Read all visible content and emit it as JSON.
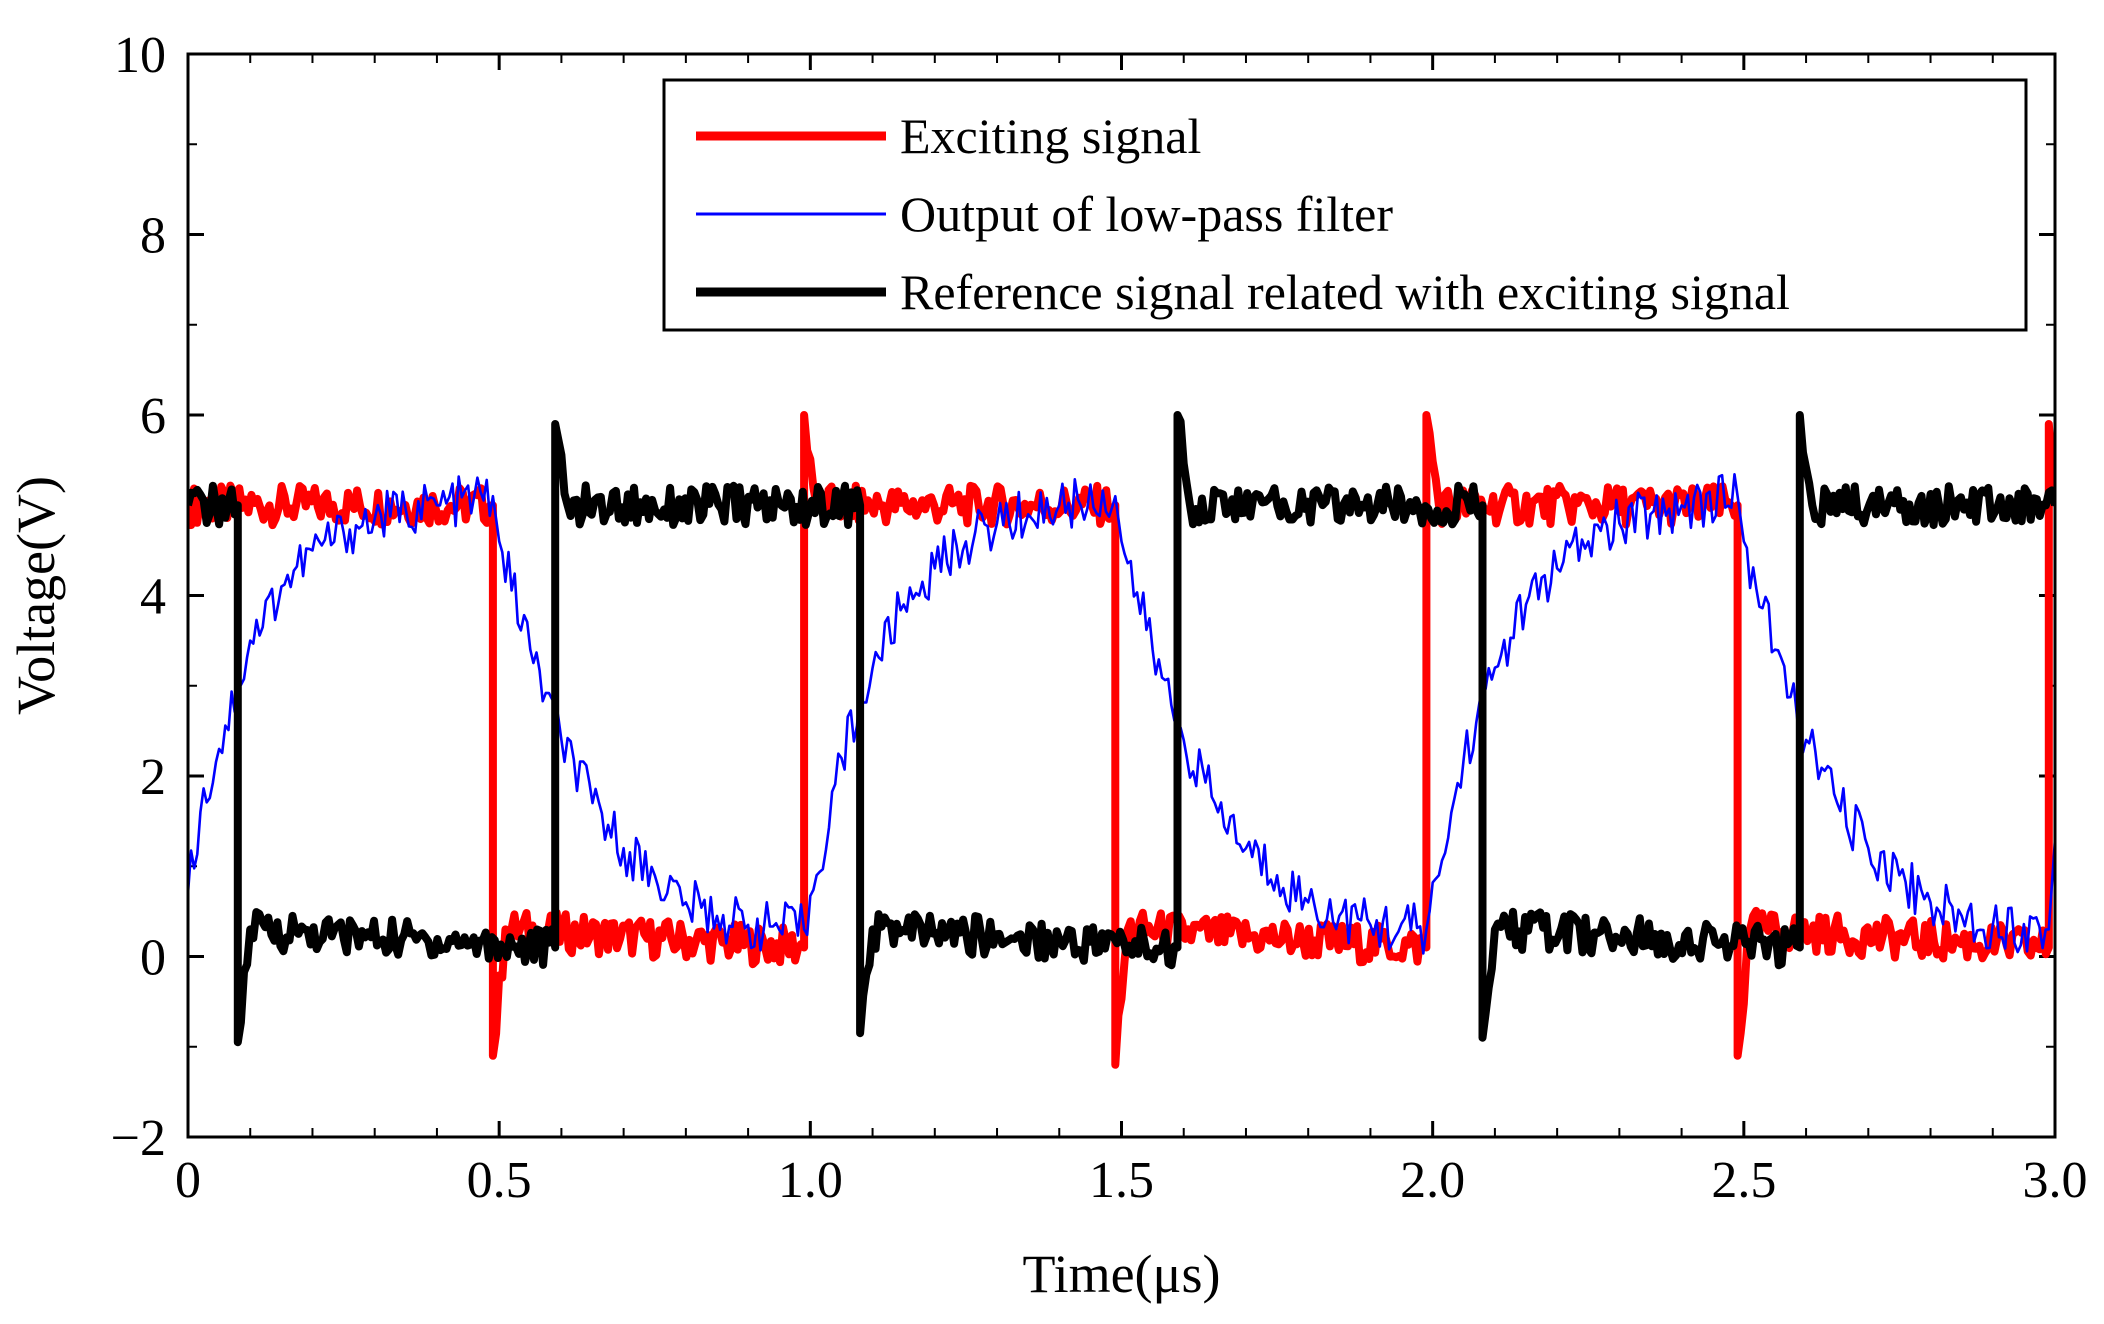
{
  "chart_data": {
    "type": "line",
    "title": "",
    "xlabel": "Time(μs)",
    "ylabel": "Voltage(V)",
    "xlim": [
      0,
      3.0
    ],
    "ylim": [
      -2,
      10
    ],
    "x_ticks": [
      0,
      0.5,
      1.0,
      1.5,
      2.0,
      2.5,
      3.0
    ],
    "x_tick_labels": [
      "0",
      "0.5",
      "1.0",
      "1.5",
      "2.0",
      "2.5",
      "3.0"
    ],
    "y_ticks": [
      -2,
      0,
      2,
      4,
      6,
      8,
      10
    ],
    "y_tick_labels": [
      "−2",
      "0",
      "2",
      "4",
      "6",
      "8",
      "10"
    ],
    "grid": false,
    "legend_position": "top-right",
    "series": [
      {
        "name": "Exciting signal",
        "color": "#ff0000",
        "line_style": "thick",
        "points": [
          [
            0.0,
            5.0
          ],
          [
            0.49,
            5.0
          ],
          [
            0.49,
            -1.1
          ],
          [
            0.51,
            0.3
          ],
          [
            0.99,
            0.1
          ],
          [
            0.99,
            6.0
          ],
          [
            1.01,
            5.0
          ],
          [
            1.49,
            5.0
          ],
          [
            1.49,
            -1.2
          ],
          [
            1.51,
            0.3
          ],
          [
            1.99,
            0.1
          ],
          [
            1.99,
            6.0
          ],
          [
            2.01,
            5.0
          ],
          [
            2.49,
            5.0
          ],
          [
            2.49,
            -1.1
          ],
          [
            2.51,
            0.3
          ],
          [
            2.99,
            0.1
          ],
          [
            2.99,
            5.9
          ],
          [
            3.0,
            5.0
          ]
        ]
      },
      {
        "name": "Output of low-pass filter",
        "color": "#0000ff",
        "line_style": "thin",
        "points": [
          [
            0.0,
            0.7
          ],
          [
            0.02,
            1.6
          ],
          [
            0.05,
            2.3
          ],
          [
            0.08,
            3.0
          ],
          [
            0.1,
            3.5
          ],
          [
            0.15,
            4.1
          ],
          [
            0.2,
            4.5
          ],
          [
            0.25,
            4.7
          ],
          [
            0.3,
            4.85
          ],
          [
            0.35,
            4.95
          ],
          [
            0.4,
            5.0
          ],
          [
            0.49,
            5.1
          ],
          [
            0.5,
            4.6
          ],
          [
            0.55,
            3.4
          ],
          [
            0.6,
            2.4
          ],
          [
            0.65,
            1.7
          ],
          [
            0.7,
            1.2
          ],
          [
            0.75,
            0.9
          ],
          [
            0.8,
            0.6
          ],
          [
            0.85,
            0.45
          ],
          [
            0.9,
            0.35
          ],
          [
            0.99,
            0.3
          ],
          [
            1.01,
            0.9
          ],
          [
            1.05,
            2.2
          ],
          [
            1.1,
            3.2
          ],
          [
            1.15,
            3.9
          ],
          [
            1.2,
            4.3
          ],
          [
            1.25,
            4.6
          ],
          [
            1.3,
            4.8
          ],
          [
            1.35,
            4.9
          ],
          [
            1.4,
            5.0
          ],
          [
            1.49,
            5.1
          ],
          [
            1.5,
            4.6
          ],
          [
            1.55,
            3.4
          ],
          [
            1.6,
            2.4
          ],
          [
            1.65,
            1.7
          ],
          [
            1.7,
            1.2
          ],
          [
            1.75,
            0.9
          ],
          [
            1.8,
            0.6
          ],
          [
            1.85,
            0.45
          ],
          [
            1.9,
            0.35
          ],
          [
            1.99,
            0.3
          ],
          [
            2.01,
            0.9
          ],
          [
            2.05,
            2.2
          ],
          [
            2.1,
            3.2
          ],
          [
            2.15,
            3.9
          ],
          [
            2.2,
            4.3
          ],
          [
            2.25,
            4.6
          ],
          [
            2.3,
            4.8
          ],
          [
            2.35,
            4.9
          ],
          [
            2.4,
            5.0
          ],
          [
            2.49,
            5.1
          ],
          [
            2.5,
            4.6
          ],
          [
            2.55,
            3.4
          ],
          [
            2.6,
            2.4
          ],
          [
            2.65,
            1.7
          ],
          [
            2.7,
            1.2
          ],
          [
            2.75,
            0.9
          ],
          [
            2.8,
            0.6
          ],
          [
            2.85,
            0.45
          ],
          [
            2.9,
            0.35
          ],
          [
            2.99,
            0.3
          ],
          [
            3.0,
            1.3
          ]
        ]
      },
      {
        "name": "Reference signal related with exciting signal",
        "color": "#000000",
        "line_style": "thick",
        "points": [
          [
            0.0,
            5.0
          ],
          [
            0.08,
            5.0
          ],
          [
            0.08,
            -0.95
          ],
          [
            0.1,
            0.3
          ],
          [
            0.59,
            0.1
          ],
          [
            0.59,
            5.9
          ],
          [
            0.61,
            5.0
          ],
          [
            1.08,
            5.0
          ],
          [
            1.08,
            -0.85
          ],
          [
            1.1,
            0.3
          ],
          [
            1.59,
            0.1
          ],
          [
            1.59,
            6.0
          ],
          [
            1.61,
            5.0
          ],
          [
            2.08,
            5.0
          ],
          [
            2.08,
            -0.9
          ],
          [
            2.1,
            0.3
          ],
          [
            2.59,
            0.1
          ],
          [
            2.59,
            6.0
          ],
          [
            2.61,
            5.0
          ],
          [
            3.0,
            5.0
          ]
        ]
      }
    ]
  },
  "legend": {
    "items": [
      {
        "label": "Exciting signal",
        "color": "#ff0000",
        "line_style": "thick"
      },
      {
        "label": "Output of low-pass filter",
        "color": "#0000ff",
        "line_style": "thin"
      },
      {
        "label": "Reference signal related with exciting signal",
        "color": "#000000",
        "line_style": "thick"
      }
    ]
  }
}
